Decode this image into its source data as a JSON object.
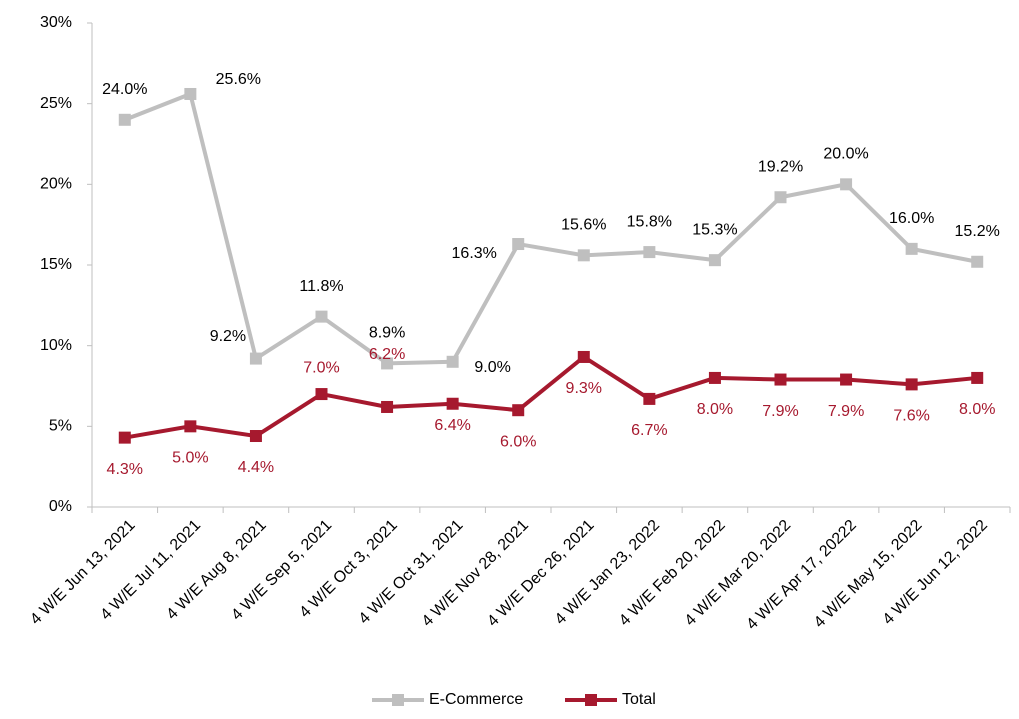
{
  "chart_data": {
    "type": "line",
    "categories": [
      "4 W/E Jun 13, 2021",
      "4 W/E Jul 11, 2021",
      "4 W/E Aug 8, 2021",
      "4 W/E Sep 5, 2021",
      "4 W/E Oct 3, 2021",
      "4 W/E Oct 31, 2021",
      "4 W/E Nov 28, 2021",
      "4 W/E Dec 26, 2021",
      "4 W/E Jan 23, 2022",
      "4 W/E Feb 20, 2022",
      "4 W/E Mar 20, 2022",
      "4 W/E Apr 17, 20222",
      "4 W/E May 15, 2022",
      "4 W/E Jun 12, 2022"
    ],
    "series": [
      {
        "name": "E-Commerce",
        "color": "#bfbfbf",
        "values": [
          24.0,
          25.6,
          9.2,
          11.8,
          8.9,
          9.0,
          16.3,
          15.6,
          15.8,
          15.3,
          19.2,
          20.0,
          16.0,
          15.2
        ],
        "value_labels": [
          "24.0%",
          "25.6%",
          "9.2%",
          "11.8%",
          "8.9%",
          "9.0%",
          "16.3%",
          "15.6%",
          "15.8%",
          "15.3%",
          "19.2%",
          "20.0%",
          "16.0%",
          "15.2%"
        ]
      },
      {
        "name": "Total",
        "color": "#a6192e",
        "values": [
          4.3,
          5.0,
          4.4,
          7.0,
          6.2,
          6.4,
          6.0,
          9.3,
          6.7,
          8.0,
          7.9,
          7.9,
          7.6,
          8.0
        ],
        "value_labels": [
          "4.3%",
          "5.0%",
          "4.4%",
          "7.0%",
          "6.2%",
          "6.4%",
          "6.0%",
          "9.3%",
          "6.7%",
          "8.0%",
          "7.9%",
          "7.9%",
          "7.6%",
          "8.0%"
        ]
      }
    ],
    "ylim": [
      0,
      30
    ],
    "yticks": [
      {
        "value": 0,
        "label": "0%"
      },
      {
        "value": 5,
        "label": "5%"
      },
      {
        "value": 10,
        "label": "10%"
      },
      {
        "value": 15,
        "label": "15%"
      },
      {
        "value": 20,
        "label": "20%"
      },
      {
        "value": 25,
        "label": "25%"
      },
      {
        "value": 30,
        "label": "30%"
      }
    ],
    "grid": false,
    "legend": "bottom"
  }
}
